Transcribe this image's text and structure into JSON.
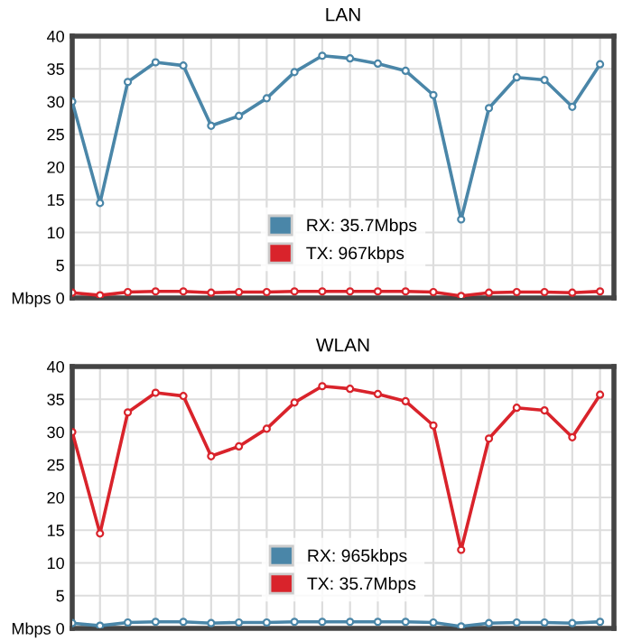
{
  "chart_data": [
    {
      "type": "line",
      "title": "LAN",
      "categories": [
        null,
        null,
        null,
        null,
        null,
        null,
        null,
        null,
        null,
        null,
        null,
        null,
        null,
        null,
        null,
        null,
        null,
        null,
        null,
        null
      ],
      "series": [
        {
          "name": "RX: 35.7Mbps",
          "color": "#4a86a8",
          "values": [
            30,
            14.5,
            33,
            36,
            35.5,
            26.3,
            27.8,
            30.5,
            34.5,
            37,
            36.6,
            35.8,
            34.7,
            31,
            12,
            29,
            33.7,
            33.3,
            29.2,
            35.7
          ]
        },
        {
          "name": "TX: 967kbps",
          "color": "#d9232b",
          "values": [
            0.8,
            0.4,
            0.9,
            1.0,
            1.0,
            0.8,
            0.9,
            0.9,
            1.0,
            1.0,
            1.0,
            1.0,
            1.0,
            0.9,
            0.3,
            0.8,
            0.9,
            0.9,
            0.8,
            1.0
          ]
        }
      ],
      "ylim": [
        0,
        40
      ],
      "yticks": [
        {
          "value": 0,
          "label": "Mbps 0"
        },
        5,
        10,
        15,
        20,
        25,
        30,
        35,
        40
      ],
      "grid": true,
      "legend": "bottom",
      "marker": "circle",
      "line_style": "solid"
    },
    {
      "type": "line",
      "title": "WLAN",
      "categories": [
        null,
        null,
        null,
        null,
        null,
        null,
        null,
        null,
        null,
        null,
        null,
        null,
        null,
        null,
        null,
        null,
        null,
        null,
        null,
        null
      ],
      "series": [
        {
          "name": "RX: 965kbps",
          "color": "#4a86a8",
          "values": [
            0.8,
            0.4,
            0.9,
            1.0,
            1.0,
            0.8,
            0.9,
            0.9,
            1.0,
            1.0,
            1.0,
            1.0,
            1.0,
            0.9,
            0.3,
            0.8,
            0.9,
            0.9,
            0.8,
            1.0
          ]
        },
        {
          "name": "TX: 35.7Mbps",
          "color": "#d9232b",
          "values": [
            30,
            14.5,
            33,
            36,
            35.5,
            26.3,
            27.8,
            30.5,
            34.5,
            37,
            36.6,
            35.8,
            34.7,
            31,
            12,
            29,
            33.7,
            33.3,
            29.2,
            35.7
          ]
        }
      ],
      "ylim": [
        0,
        40
      ],
      "yticks": [
        {
          "value": 0,
          "label": "Mbps 0"
        },
        5,
        10,
        15,
        20,
        25,
        30,
        35,
        40
      ],
      "grid": true,
      "legend": "bottom",
      "marker": "circle",
      "line_style": "solid"
    }
  ]
}
